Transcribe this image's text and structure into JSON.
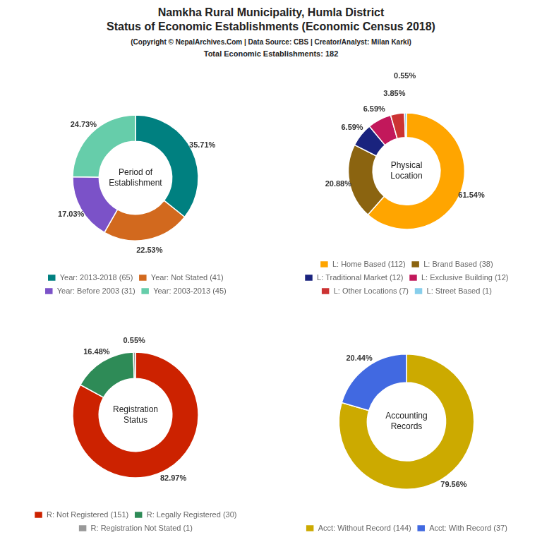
{
  "title": "Namkha Rural Municipality, Humla District\nStatus of Economic Establishments (Economic Census 2018)",
  "subtitle": "(Copyright © NepalArchives.Com | Data Source: CBS | Creator/Analyst: Milan Karki)",
  "annotations": [
    "Total Economic Establishments: 182"
  ],
  "chart_data": [
    {
      "type": "doughnut",
      "title": "Period of\nEstablishment",
      "categories": [
        "Year: 2013-2018 (65)",
        "Year: Not Stated (41)",
        "Year: Before 2003 (31)",
        "Year: 2003-2013 (45)"
      ],
      "values": [
        35.71,
        22.53,
        17.03,
        24.73
      ],
      "value_labels": [
        "35.71%",
        "22.53%",
        "17.03%",
        "24.73%"
      ],
      "colors": [
        "#008080",
        "#d2691e",
        "#7b52c8",
        "#66cdaa"
      ],
      "data_labels": true,
      "legend": "bottom"
    },
    {
      "type": "doughnut",
      "title": "Physical\nLocation",
      "categories": [
        "L: Home Based (112)",
        "L: Brand Based (38)",
        "L: Traditional Market (12)",
        "L: Exclusive Building (12)",
        "L: Other Locations (7)",
        "L: Street Based (1)"
      ],
      "values": [
        61.54,
        20.88,
        6.59,
        6.59,
        3.85,
        0.55
      ],
      "value_labels": [
        "61.54%",
        "20.88%",
        "6.59%",
        "6.59%",
        "3.85%",
        "0.55%"
      ],
      "colors": [
        "#ffa500",
        "#8b6410",
        "#1a237e",
        "#c2185b",
        "#cc3333",
        "#87ceeb"
      ],
      "data_labels": true,
      "legend": "bottom"
    },
    {
      "type": "doughnut",
      "title": "Registration\nStatus",
      "categories": [
        "R: Not Registered (151)",
        "R: Legally Registered (30)",
        "R: Registration Not Stated (1)"
      ],
      "values": [
        82.97,
        16.48,
        0.55
      ],
      "value_labels": [
        "82.97%",
        "16.48%",
        "0.55%"
      ],
      "colors": [
        "#cc2200",
        "#2e8b57",
        "#999999"
      ],
      "data_labels": true,
      "legend": "bottom"
    },
    {
      "type": "doughnut",
      "title": "Accounting\nRecords",
      "categories": [
        "Acct: Without Record (144)",
        "Acct: With Record (37)"
      ],
      "values": [
        79.56,
        20.44
      ],
      "value_labels": [
        "79.56%",
        "20.44%"
      ],
      "colors": [
        "#ccaa00",
        "#4169e1"
      ],
      "data_labels": true,
      "legend": "bottom"
    }
  ]
}
